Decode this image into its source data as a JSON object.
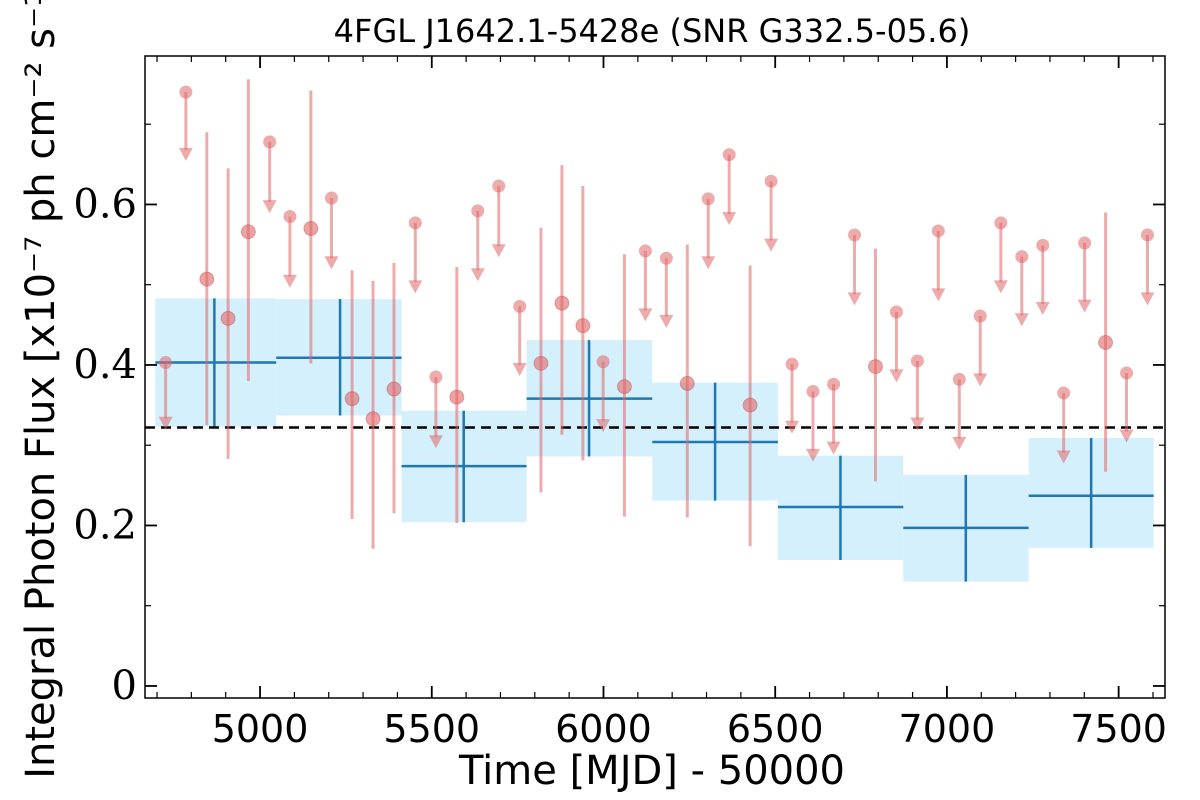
{
  "chart_data": {
    "type": "scatter",
    "title": "4FGL J1642.1-5428e (SNR G332.5-05.6)",
    "xlabel": "Time [MJD] - 50000",
    "ylabel": "Integral Photon Flux [x10⁻⁷ ph cm⁻² s⁻¹]",
    "xlim": [
      4665,
      7635
    ],
    "ylim": [
      -0.015,
      0.785
    ],
    "xticks": [
      5000,
      5500,
      6000,
      6500,
      7000,
      7500
    ],
    "xtick_labels": [
      "5000",
      "5500",
      "6000",
      "6500",
      "7000",
      "7500"
    ],
    "yticks": [
      0,
      0.2,
      0.4,
      0.6
    ],
    "ytick_labels": [
      "0",
      "0.2",
      "0.4",
      "0.6"
    ],
    "grid": false,
    "mean_flux": 0.322,
    "colors": {
      "bins": "#1f77b4",
      "band": "#cfeefc",
      "points": "#e06666",
      "mean": "#000000"
    },
    "series": [
      {
        "type": "binned",
        "points": [
          {
            "x": 4867,
            "x_low": 4695,
            "x_high": 5047,
            "y": 0.403,
            "y_low": 0.323,
            "y_high": 0.483
          },
          {
            "x": 5233,
            "x_low": 5047,
            "x_high": 5412,
            "y": 0.409,
            "y_low": 0.337,
            "y_high": 0.482
          },
          {
            "x": 5593,
            "x_low": 5412,
            "x_high": 5776,
            "y": 0.274,
            "y_low": 0.204,
            "y_high": 0.343
          },
          {
            "x": 5958,
            "x_low": 5776,
            "x_high": 6142,
            "y": 0.358,
            "y_low": 0.286,
            "y_high": 0.431
          },
          {
            "x": 6325,
            "x_low": 6142,
            "x_high": 6508,
            "y": 0.304,
            "y_low": 0.231,
            "y_high": 0.378
          },
          {
            "x": 6690,
            "x_low": 6508,
            "x_high": 6873,
            "y": 0.223,
            "y_low": 0.157,
            "y_high": 0.287
          },
          {
            "x": 7055,
            "x_low": 6873,
            "x_high": 7238,
            "y": 0.197,
            "y_low": 0.13,
            "y_high": 0.263
          },
          {
            "x": 7420,
            "x_low": 7238,
            "x_high": 7602,
            "y": 0.237,
            "y_low": 0.172,
            "y_high": 0.309
          }
        ]
      },
      {
        "type": "monthly",
        "points": [
          {
            "x": 4725,
            "y": 0.403,
            "y_low": 0.323,
            "upper_limit": true
          },
          {
            "x": 4784,
            "y": 0.74,
            "y_low": 0.658,
            "upper_limit": true
          },
          {
            "x": 4845,
            "y": 0.507,
            "y_low": 0.325,
            "y_high": 0.69,
            "upper_limit": false
          },
          {
            "x": 4907,
            "y": 0.458,
            "y_low": 0.283,
            "y_high": 0.645,
            "upper_limit": false
          },
          {
            "x": 4966,
            "y": 0.566,
            "y_low": 0.38,
            "y_high": 0.756,
            "upper_limit": false
          },
          {
            "x": 5028,
            "y": 0.678,
            "y_low": 0.593,
            "upper_limit": true
          },
          {
            "x": 5087,
            "y": 0.585,
            "y_low": 0.5,
            "upper_limit": true
          },
          {
            "x": 5148,
            "y": 0.57,
            "y_low": 0.402,
            "y_high": 0.742,
            "upper_limit": false
          },
          {
            "x": 5208,
            "y": 0.608,
            "y_low": 0.523,
            "upper_limit": true
          },
          {
            "x": 5268,
            "y": 0.358,
            "y_low": 0.208,
            "y_high": 0.518,
            "upper_limit": false
          },
          {
            "x": 5329,
            "y": 0.333,
            "y_low": 0.171,
            "y_high": 0.505,
            "upper_limit": false
          },
          {
            "x": 5390,
            "y": 0.37,
            "y_low": 0.215,
            "y_high": 0.527,
            "upper_limit": false
          },
          {
            "x": 5452,
            "y": 0.577,
            "y_low": 0.493,
            "upper_limit": true
          },
          {
            "x": 5512,
            "y": 0.385,
            "y_low": 0.3,
            "upper_limit": true
          },
          {
            "x": 5573,
            "y": 0.36,
            "y_low": 0.203,
            "y_high": 0.522,
            "upper_limit": false
          },
          {
            "x": 5634,
            "y": 0.592,
            "y_low": 0.508,
            "upper_limit": true
          },
          {
            "x": 5695,
            "y": 0.623,
            "y_low": 0.538,
            "upper_limit": true
          },
          {
            "x": 5756,
            "y": 0.473,
            "y_low": 0.39,
            "upper_limit": true
          },
          {
            "x": 5818,
            "y": 0.402,
            "y_low": 0.241,
            "y_high": 0.571,
            "upper_limit": false
          },
          {
            "x": 5879,
            "y": 0.477,
            "y_low": 0.313,
            "y_high": 0.649,
            "upper_limit": false
          },
          {
            "x": 5940,
            "y": 0.449,
            "y_low": 0.281,
            "y_high": 0.623,
            "upper_limit": false
          },
          {
            "x": 5999,
            "y": 0.404,
            "y_low": 0.32,
            "upper_limit": true
          },
          {
            "x": 6061,
            "y": 0.373,
            "y_low": 0.211,
            "y_high": 0.538,
            "upper_limit": false
          },
          {
            "x": 6122,
            "y": 0.542,
            "y_low": 0.458,
            "upper_limit": true
          },
          {
            "x": 6183,
            "y": 0.533,
            "y_low": 0.45,
            "upper_limit": true
          },
          {
            "x": 6244,
            "y": 0.377,
            "y_low": 0.21,
            "y_high": 0.55,
            "upper_limit": false
          },
          {
            "x": 6305,
            "y": 0.607,
            "y_low": 0.523,
            "upper_limit": true
          },
          {
            "x": 6366,
            "y": 0.662,
            "y_low": 0.578,
            "upper_limit": true
          },
          {
            "x": 6427,
            "y": 0.35,
            "y_low": 0.174,
            "y_high": 0.524,
            "upper_limit": false
          },
          {
            "x": 6488,
            "y": 0.629,
            "y_low": 0.545,
            "upper_limit": true
          },
          {
            "x": 6549,
            "y": 0.401,
            "y_low": 0.318,
            "upper_limit": true
          },
          {
            "x": 6610,
            "y": 0.367,
            "y_low": 0.283,
            "upper_limit": true
          },
          {
            "x": 6670,
            "y": 0.376,
            "y_low": 0.292,
            "upper_limit": true
          },
          {
            "x": 6731,
            "y": 0.562,
            "y_low": 0.478,
            "upper_limit": true
          },
          {
            "x": 6792,
            "y": 0.398,
            "y_low": 0.255,
            "y_high": 0.545,
            "upper_limit": false
          },
          {
            "x": 6853,
            "y": 0.466,
            "y_low": 0.382,
            "upper_limit": true
          },
          {
            "x": 6914,
            "y": 0.405,
            "y_low": 0.322,
            "upper_limit": true
          },
          {
            "x": 6975,
            "y": 0.567,
            "y_low": 0.483,
            "upper_limit": true
          },
          {
            "x": 7036,
            "y": 0.382,
            "y_low": 0.298,
            "upper_limit": true
          },
          {
            "x": 7097,
            "y": 0.461,
            "y_low": 0.377,
            "upper_limit": true
          },
          {
            "x": 7157,
            "y": 0.577,
            "y_low": 0.493,
            "upper_limit": true
          },
          {
            "x": 7218,
            "y": 0.535,
            "y_low": 0.452,
            "upper_limit": true
          },
          {
            "x": 7279,
            "y": 0.549,
            "y_low": 0.466,
            "upper_limit": true
          },
          {
            "x": 7340,
            "y": 0.365,
            "y_low": 0.281,
            "upper_limit": true
          },
          {
            "x": 7401,
            "y": 0.552,
            "y_low": 0.469,
            "upper_limit": true
          },
          {
            "x": 7462,
            "y": 0.428,
            "y_low": 0.267,
            "y_high": 0.59,
            "upper_limit": false
          },
          {
            "x": 7523,
            "y": 0.39,
            "y_low": 0.307,
            "upper_limit": true
          },
          {
            "x": 7584,
            "y": 0.562,
            "y_low": 0.478,
            "upper_limit": true
          }
        ]
      }
    ]
  }
}
